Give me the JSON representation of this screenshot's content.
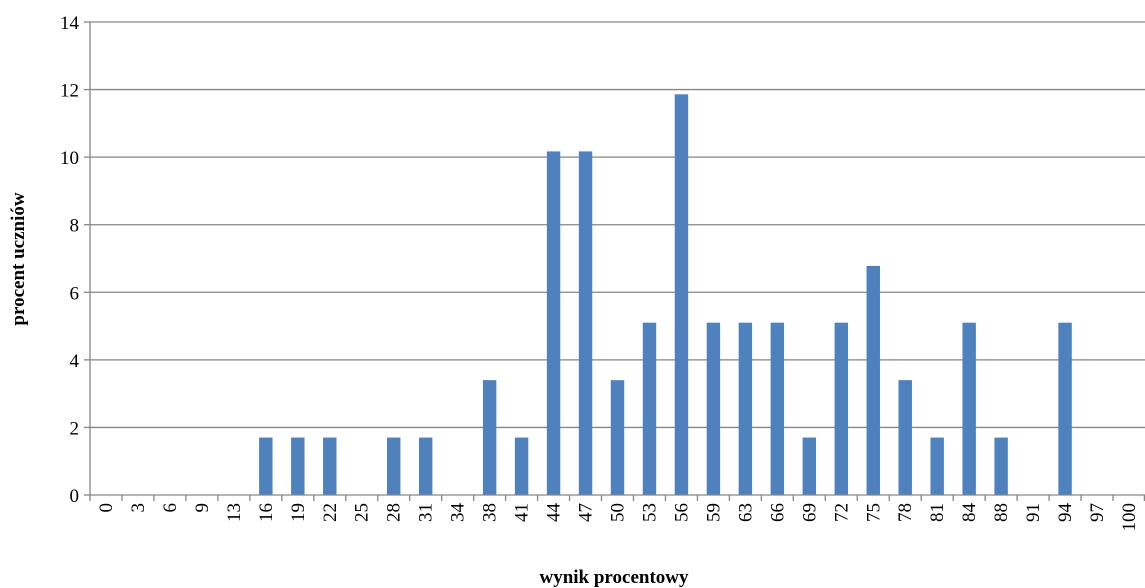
{
  "chart_data": {
    "type": "bar",
    "title": "",
    "xlabel": "wynik procentowy",
    "ylabel": "procent uczniów",
    "ylim": [
      0,
      14
    ],
    "yticks": [
      0,
      2,
      4,
      6,
      8,
      10,
      12,
      14
    ],
    "grid": true,
    "legend": "none",
    "bar_color": "#4f81bd",
    "categories": [
      "0",
      "3",
      "6",
      "9",
      "13",
      "16",
      "19",
      "22",
      "25",
      "28",
      "31",
      "34",
      "38",
      "41",
      "44",
      "47",
      "50",
      "53",
      "56",
      "59",
      "63",
      "66",
      "69",
      "72",
      "75",
      "78",
      "81",
      "84",
      "88",
      "91",
      "94",
      "97",
      "100"
    ],
    "values": [
      0,
      0,
      0,
      0,
      0,
      1.7,
      1.7,
      1.7,
      0,
      1.7,
      1.7,
      0,
      3.4,
      1.7,
      10.17,
      10.17,
      3.4,
      5.1,
      11.86,
      5.1,
      5.1,
      5.1,
      1.7,
      5.1,
      6.78,
      3.4,
      1.7,
      5.1,
      1.7,
      0,
      5.1,
      0,
      0
    ]
  }
}
